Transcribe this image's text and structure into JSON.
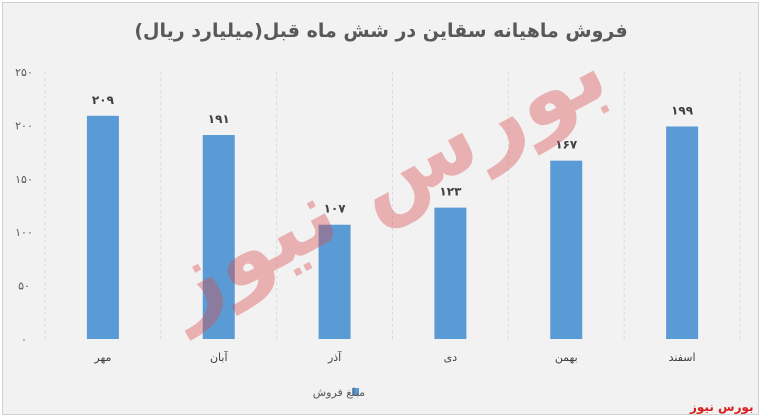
{
  "chart_data": {
    "type": "bar",
    "title": "فروش ماهیانه سقاین در شش ماه قبل(میلیارد ریال)",
    "categories": [
      "مهر",
      "آبان",
      "آذر",
      "دی",
      "بهمن",
      "اسفند"
    ],
    "series": [
      {
        "name": "مبلغ فروش",
        "values": [
          209,
          191,
          107,
          123,
          167,
          199
        ],
        "data_labels": [
          "۲۰۹",
          "۱۹۱",
          "۱۰۷",
          "۱۲۳",
          "۱۶۷",
          "۱۹۹"
        ]
      }
    ],
    "yticks": [
      0,
      50,
      100,
      150,
      200,
      250
    ],
    "ytick_labels": [
      "۰",
      "۵۰",
      "۱۰۰",
      "۱۵۰",
      "۲۰۰",
      "۲۵۰"
    ],
    "ylim": [
      0,
      250
    ],
    "xlabel": "",
    "ylabel": "",
    "grid": "vertical dashed lines between categories",
    "legend_position": "bottom",
    "bar_color": "#5b9bd5"
  },
  "watermark": "بورس نیوز",
  "logo": "بورس نیوز"
}
